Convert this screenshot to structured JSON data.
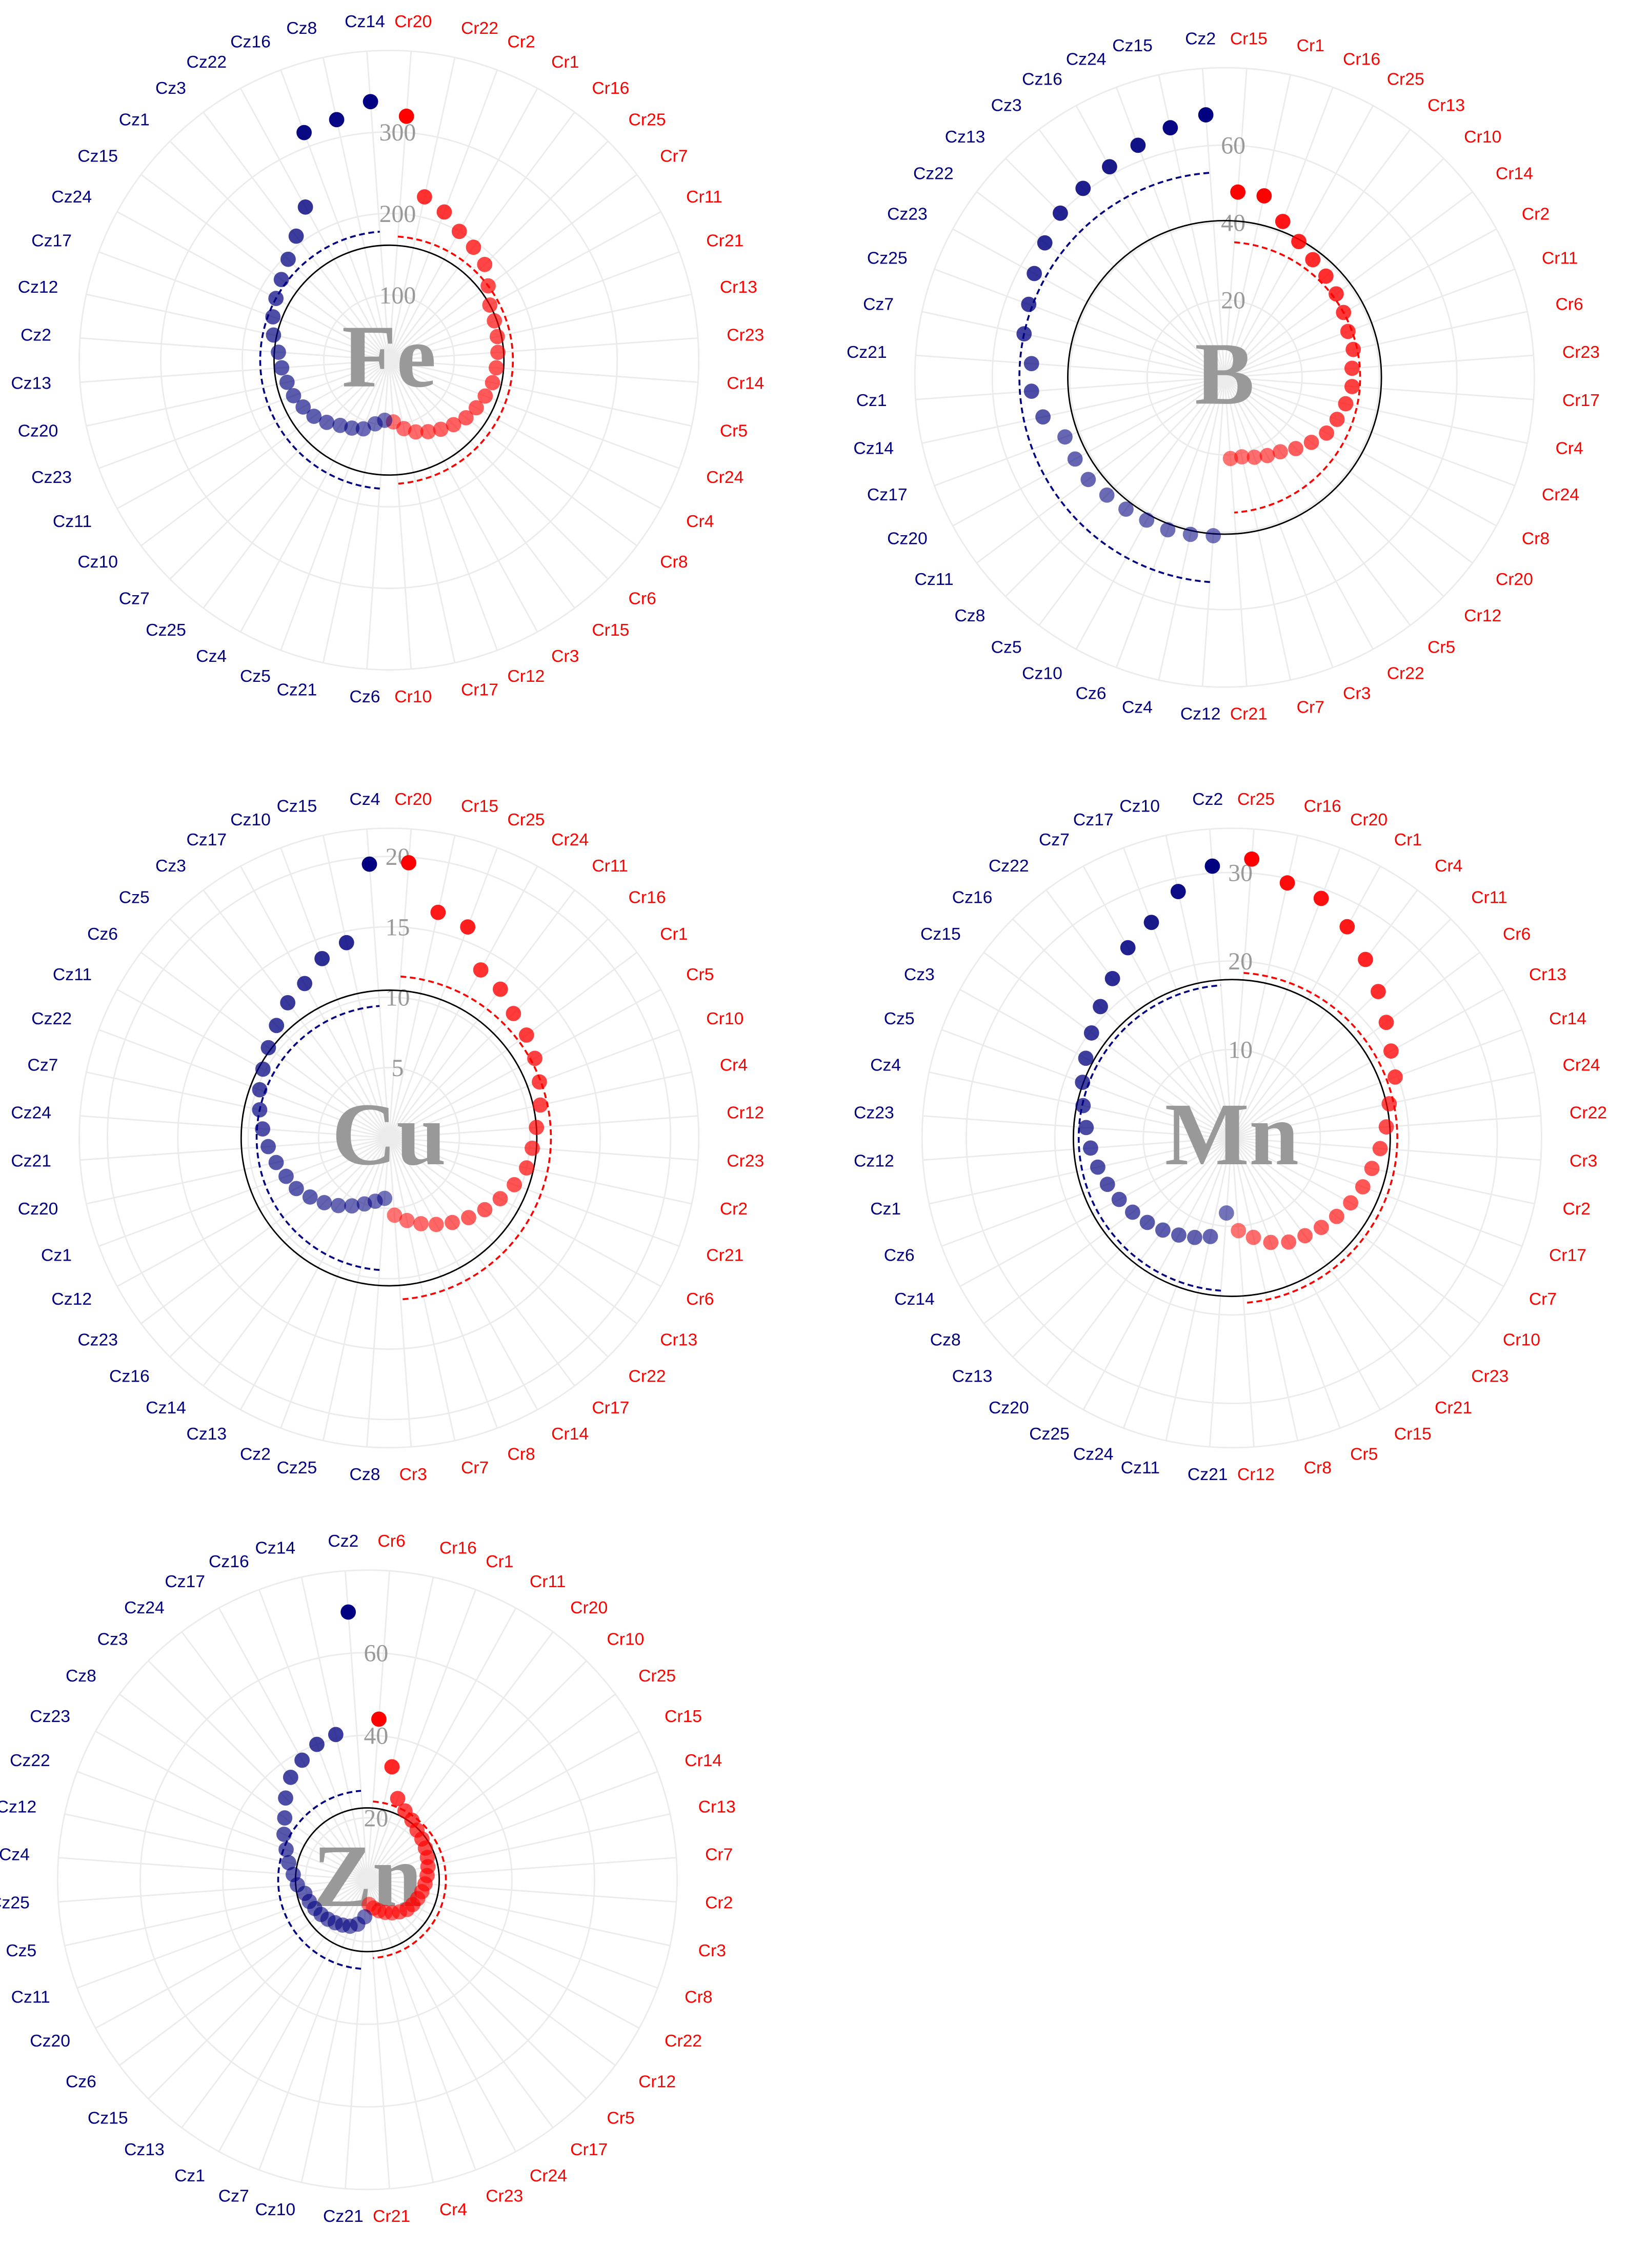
{
  "chart_data": [
    {
      "type": "polar_scatter",
      "title": "Fe",
      "ylim": [
        20,
        400
      ],
      "yticks": [
        100,
        200,
        300
      ],
      "reference": 161,
      "reference_color": "#000000",
      "series": [
        {
          "color": "#ff0000",
          "mean": 172,
          "categories": [
            "Cr20",
            "Cr22",
            "Cr2",
            "Cr1",
            "Cr16",
            "Cr25",
            "Cr7",
            "Cr11",
            "Cr21",
            "Cr13",
            "Cr23",
            "Cr14",
            "Cr5",
            "Cr24",
            "Cr4",
            "Cr8",
            "Cr6",
            "Cr15",
            "Cr3",
            "Cr12",
            "Cr17",
            "Cr10"
          ],
          "values": [
            320,
            225,
            214,
            200,
            193,
            186,
            172,
            161,
            158,
            156,
            154,
            152,
            150,
            146,
            142,
            138,
            132,
            126,
            120,
            114,
            106,
            96
          ]
        },
        {
          "color": "#000080",
          "mean": 178,
          "categories": [
            "Cz6",
            "Cz21",
            "Cz5",
            "Cz4",
            "Cz25",
            "Cz7",
            "Cz10",
            "Cz11",
            "Cz23",
            "Cz20",
            "Cz13",
            "Cz2",
            "Cz12",
            "Cz17",
            "Cz24",
            "Cz15",
            "Cz1",
            "Cz3",
            "Cz22",
            "Cz16",
            "Cz8",
            "Cz14"
          ],
          "values": [
            94,
            100,
            110,
            115,
            120,
            128,
            135,
            140,
            145,
            148,
            152,
            156,
            165,
            172,
            178,
            185,
            195,
            210,
            234,
            318,
            322,
            338
          ]
        }
      ]
    },
    {
      "type": "polar_scatter",
      "title": "B",
      "ylim": [
        0,
        80
      ],
      "yticks": [
        20,
        40,
        60
      ],
      "reference": 40.5,
      "reference_color": "#000000",
      "series": [
        {
          "color": "#ff0000",
          "mean": 35,
          "categories": [
            "Cr15",
            "Cr1",
            "Cr16",
            "Cr25",
            "Cr13",
            "Cr10",
            "Cr14",
            "Cr2",
            "Cr11",
            "Cr6",
            "Cr23",
            "Cr17",
            "Cr4",
            "Cr24",
            "Cr8",
            "Cr20",
            "Cr12",
            "Cr5",
            "Cr22",
            "Cr3",
            "Cr7",
            "Cr21"
          ],
          "values": [
            48,
            48,
            43,
            40,
            38,
            37,
            36,
            35,
            34,
            34,
            33,
            33,
            32,
            31,
            30,
            28,
            26,
            24,
            23,
            22,
            21,
            21
          ]
        },
        {
          "color": "#000080",
          "mean": 53,
          "categories": [
            "Cz12",
            "Cz4",
            "Cz6",
            "Cz10",
            "Cz5",
            "Cz8",
            "Cz11",
            "Cz20",
            "Cz17",
            "Cz14",
            "Cz1",
            "Cz21",
            "Cz7",
            "Cz25",
            "Cz23",
            "Cz22",
            "Cz13",
            "Cz3",
            "Cz16",
            "Cz24",
            "Cz15",
            "Cz2"
          ],
          "values": [
            41,
            41.5,
            42,
            42,
            42.5,
            43,
            44,
            44,
            44,
            48,
            50,
            50,
            53,
            54,
            56,
            58,
            60,
            61,
            62,
            64,
            66,
            68
          ]
        }
      ]
    },
    {
      "type": "polar_scatter",
      "title": "Cu",
      "ylim": [
        0,
        22
      ],
      "yticks": [
        5,
        10,
        15,
        20
      ],
      "reference": 10.5,
      "reference_color": "#000000",
      "series": [
        {
          "color": "#ff0000",
          "mean": 11.5,
          "categories": [
            "Cr20",
            "Cr15",
            "Cr25",
            "Cr24",
            "Cr11",
            "Cr16",
            "Cr1",
            "Cr5",
            "Cr10",
            "Cr4",
            "Cr12",
            "Cr23",
            "Cr2",
            "Cr21",
            "Cr6",
            "Cr13",
            "Cr22",
            "Cr17",
            "Cr14",
            "Cr8",
            "Cr7",
            "Cr3"
          ],
          "values": [
            19.6,
            16.4,
            16,
            13.6,
            13.2,
            12.5,
            12.2,
            11.8,
            11.4,
            11,
            10.5,
            10.2,
            10,
            9.5,
            9,
            8.5,
            8,
            7.5,
            7,
            6.5,
            6,
            5.5
          ]
        },
        {
          "color": "#000080",
          "mean": 9.4,
          "categories": [
            "Cz8",
            "Cz25",
            "Cz2",
            "Cz13",
            "Cz14",
            "Cz16",
            "Cz23",
            "Cz12",
            "Cz1",
            "Cz20",
            "Cz21",
            "Cz24",
            "Cz7",
            "Cz22",
            "Cz11",
            "Cz6",
            "Cz5",
            "Cz3",
            "Cz17",
            "Cz10",
            "Cz15",
            "Cz4"
          ],
          "values": [
            4.3,
            4.6,
            5,
            5.5,
            6,
            6.5,
            7,
            7.5,
            7.8,
            8.2,
            8.6,
            9,
            9.4,
            9.8,
            10.2,
            10.7,
            11.3,
            12,
            12.5,
            13.6,
            14.2,
            19.5
          ]
        }
      ]
    },
    {
      "type": "polar_scatter",
      "title": "Mn",
      "ylim": [
        0,
        35
      ],
      "yticks": [
        10,
        20,
        30
      ],
      "reference": 17.9,
      "reference_color": "#000000",
      "series": [
        {
          "color": "#ff0000",
          "mean": 18.7,
          "categories": [
            "Cr25",
            "Cr16",
            "Cr20",
            "Cr1",
            "Cr4",
            "Cr11",
            "Cr6",
            "Cr13",
            "Cr14",
            "Cr24",
            "Cr22",
            "Cr3",
            "Cr2",
            "Cr17",
            "Cr7",
            "Cr10",
            "Cr23",
            "Cr21",
            "Cr15",
            "Cr5",
            "Cr8",
            "Cr12"
          ],
          "values": [
            31.6,
            29.5,
            28.9,
            27.2,
            25.2,
            23.4,
            21.8,
            20.5,
            19.7,
            18.2,
            17.5,
            16.8,
            16.2,
            15.8,
            15.3,
            14.8,
            14.3,
            13.8,
            13.4,
            12.6,
            11.5,
            10.5
          ]
        },
        {
          "color": "#000080",
          "mean": 17.3,
          "categories": [
            "Cz21",
            "Cz11",
            "Cz24",
            "Cz25",
            "Cz20",
            "Cz13",
            "Cz8",
            "Cz14",
            "Cz6",
            "Cz1",
            "Cz12",
            "Cz23",
            "Cz4",
            "Cz5",
            "Cz3",
            "Cz15",
            "Cz16",
            "Cz22",
            "Cz7",
            "Cz17",
            "Cz10",
            "Cz2"
          ],
          "values": [
            8.5,
            11.4,
            12,
            12.5,
            13,
            13.5,
            14,
            14.5,
            15,
            15.5,
            16,
            16.5,
            17.2,
            18,
            18.8,
            19.8,
            21,
            22.5,
            24.5,
            26,
            28.5,
            30.8
          ]
        }
      ]
    },
    {
      "type": "polar_scatter",
      "title": "Zn",
      "ylim": [
        5,
        80
      ],
      "yticks": [
        20,
        40,
        60
      ],
      "reference": 22.4,
      "reference_color": "#000000",
      "series": [
        {
          "color": "#ff0000",
          "mean": 24,
          "categories": [
            "Cr6",
            "Cr16",
            "Cr1",
            "Cr11",
            "Cr20",
            "Cr10",
            "Cr25",
            "Cr15",
            "Cr14",
            "Cr13",
            "Cr7",
            "Cr2",
            "Cr3",
            "Cr8",
            "Cr22",
            "Cr12",
            "Cr5",
            "Cr17",
            "Cr24",
            "Cr23",
            "Cr4",
            "Cr21"
          ],
          "values": [
            44,
            33,
            26,
            24,
            23,
            22,
            21.5,
            21,
            20.5,
            20,
            19.5,
            19,
            18.5,
            18,
            17.5,
            17,
            16,
            15,
            14,
            13,
            12,
            11
          ]
        },
        {
          "color": "#000080",
          "mean": 26.6,
          "categories": [
            "Cz21",
            "Cz10",
            "Cz7",
            "Cz1",
            "Cz13",
            "Cz15",
            "Cz6",
            "Cz20",
            "Cz11",
            "Cz5",
            "Cz25",
            "Cz4",
            "Cz12",
            "Cz22",
            "Cz23",
            "Cz8",
            "Cz3",
            "Cz24",
            "Cz17",
            "Cz16",
            "Cz14",
            "Cz2"
          ],
          "values": [
            14,
            16,
            17,
            17.5,
            18,
            18.5,
            19,
            19.5,
            20,
            20.5,
            22,
            23,
            24.5,
            26,
            28,
            30,
            33,
            36,
            38,
            40,
            41,
            70
          ]
        }
      ]
    }
  ]
}
